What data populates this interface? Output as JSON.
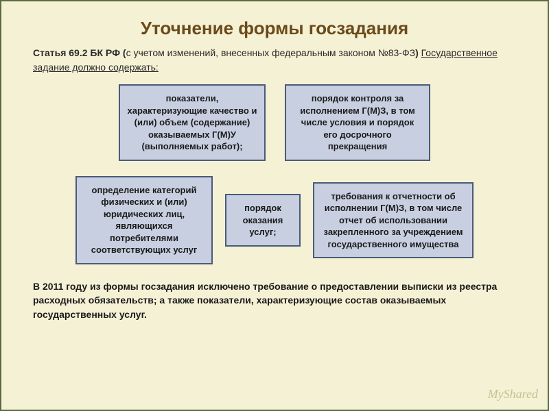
{
  "title": "Уточнение формы госзадания",
  "subtitle_bold": "Статья 69.2 БК РФ (",
  "subtitle_mid": "с учетом изменений, внесенных федеральным законом №83-ФЗ",
  "subtitle_close": ") ",
  "subtitle_underline": "Государственное задание должно содержать:",
  "boxes": {
    "b1": "показатели, характеризующие качество и (или) объем (содержание) оказываемых Г(М)У (выполняемых работ);",
    "b2": "порядок контроля за исполнением Г(М)З, в том числе условия и порядок его досрочного прекращения",
    "b3": "определение категорий физических и (или) юридических лиц, являющихся потребителями соответствующих услуг",
    "b4": "порядок оказания услуг;",
    "b5": "требования к отчетности об исполнении Г(М)З, в том числе отчет об использовании закрепленного за учреждением государственного имущества"
  },
  "footer": "В 2011 году из формы госзадания исключено требование о предоставлении выписки из реестра расходных обязательств; а также показатели, характеризующие состав оказываемых государственных услуг.",
  "watermark": "MyShared",
  "colors": {
    "bg": "#f5f1d5",
    "title": "#6b4a1a",
    "box_border": "#4a5a7a",
    "box_fill": "#c8cfe0",
    "slide_border": "#5a6b3f"
  }
}
